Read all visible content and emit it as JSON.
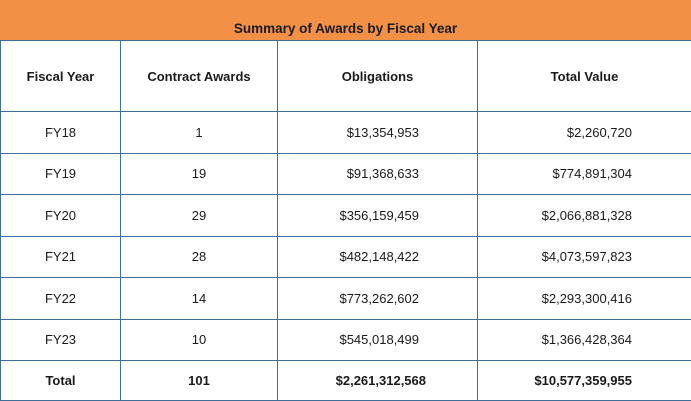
{
  "title": "Summary of Awards by Fiscal Year",
  "headers": {
    "fiscal_year": "Fiscal Year",
    "contract_awards": "Contract Awards",
    "obligations": "Obligations",
    "total_value": "Total Value"
  },
  "rows": [
    {
      "fy": "FY18",
      "awards": "1",
      "obligations": "$13,354,953",
      "total": "$2,260,720"
    },
    {
      "fy": "FY19",
      "awards": "19",
      "obligations": "$91,368,633",
      "total": "$774,891,304"
    },
    {
      "fy": "FY20",
      "awards": "29",
      "obligations": "$356,159,459",
      "total": "$2,066,881,328"
    },
    {
      "fy": "FY21",
      "awards": "28",
      "obligations": "$482,148,422",
      "total": "$4,073,597,823"
    },
    {
      "fy": "FY22",
      "awards": "14",
      "obligations": "$773,262,602",
      "total": "$2,293,300,416"
    },
    {
      "fy": "FY23",
      "awards": "10",
      "obligations": "$545,018,499",
      "total": "$1,366,428,364"
    }
  ],
  "total_row": {
    "label": "Total",
    "awards": "101",
    "obligations": "$2,261,312,568",
    "total": "$10,577,359,955"
  },
  "colors": {
    "title_bar": "#f29146",
    "grid": "#3f6f98"
  }
}
